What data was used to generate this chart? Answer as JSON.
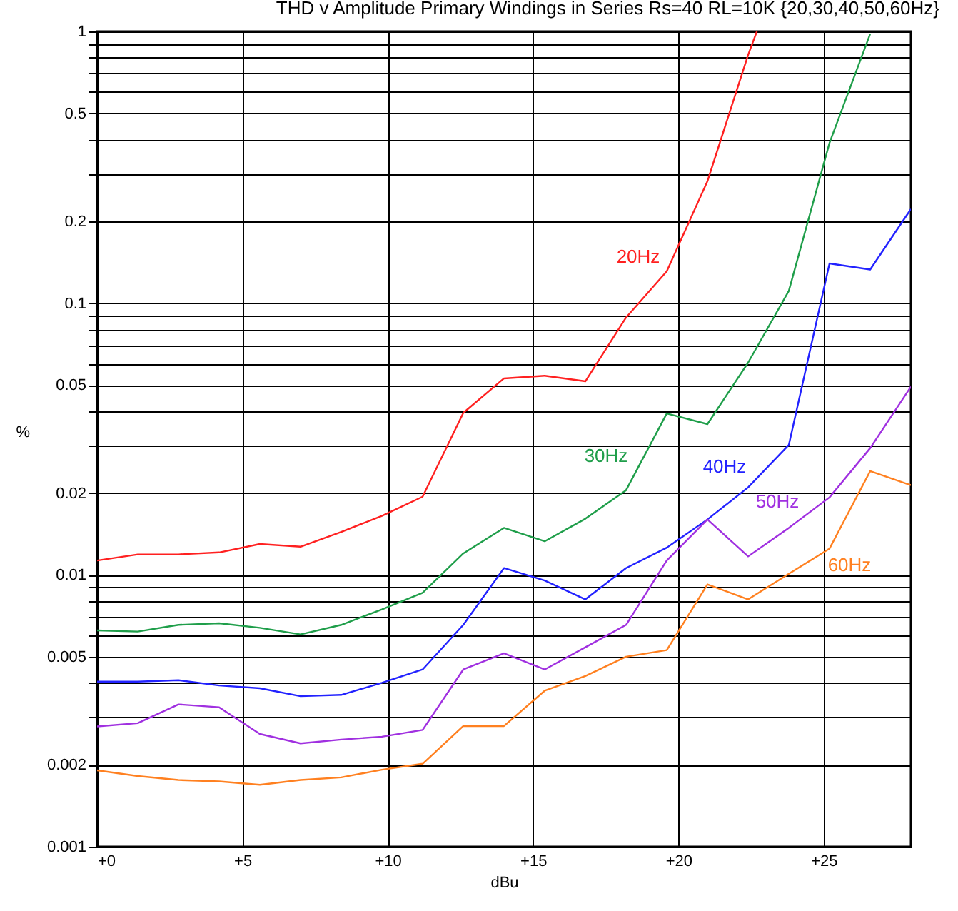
{
  "chart_data": {
    "type": "line",
    "title": "THD v Amplitude  Primary Windings in Series  Rs=40  RL=10K {20,30,40,50,60Hz}",
    "xlabel": "dBu",
    "ylabel": "%",
    "log": "y",
    "grid": true,
    "legend": false,
    "marker": "none",
    "line_style": "solid",
    "xlim": [
      0,
      28
    ],
    "ylim": [
      0.001,
      1
    ],
    "xticks": [
      {
        "value": 0,
        "label": "+0"
      },
      {
        "value": 5,
        "label": "+5"
      },
      {
        "value": 10,
        "label": "+10"
      },
      {
        "value": 15,
        "label": "+15"
      },
      {
        "value": 20,
        "label": "+20"
      },
      {
        "value": 25,
        "label": "+25"
      }
    ],
    "yticks": [
      0.001,
      {
        "value": 0.002,
        "label": "0.002"
      },
      {
        "value": 0.003,
        "label": null
      },
      {
        "value": 0.004,
        "label": null
      },
      0.005,
      {
        "value": 0.006,
        "label": null
      },
      {
        "value": 0.007,
        "label": null
      },
      {
        "value": 0.008,
        "label": null
      },
      {
        "value": 0.009,
        "label": null
      },
      0.01,
      0.02,
      {
        "value": 0.03,
        "label": null
      },
      {
        "value": 0.04,
        "label": null
      },
      0.05,
      {
        "value": 0.06,
        "label": null
      },
      {
        "value": 0.07,
        "label": null
      },
      {
        "value": 0.08,
        "label": null
      },
      {
        "value": 0.09,
        "label": null
      },
      0.1,
      0.2,
      {
        "value": 0.3,
        "label": null
      },
      {
        "value": 0.4,
        "label": null
      },
      0.5,
      {
        "value": 0.6,
        "label": null
      },
      {
        "value": 0.7,
        "label": null
      },
      {
        "value": 0.8,
        "label": null
      },
      {
        "value": 0.9,
        "label": null
      },
      1
    ],
    "series": [
      {
        "name": "20Hz",
        "color": "#ff2020",
        "x": [
          0,
          1.4,
          2.8,
          4.2,
          5.6,
          7,
          8.4,
          9.8,
          11.2,
          12.6,
          14,
          15.4,
          16.8,
          18.2,
          19.6,
          21,
          22.4,
          22.7
        ],
        "values": [
          0.0113,
          0.0119,
          0.0119,
          0.0121,
          0.013,
          0.0127,
          0.0144,
          0.0165,
          0.0194,
          0.0395,
          0.0529,
          0.0541,
          0.0516,
          0.0886,
          0.131,
          0.281,
          0.82,
          1
        ]
      },
      {
        "name": "30Hz",
        "color": "#1f9e4a",
        "x": [
          0,
          1.4,
          2.8,
          4.2,
          5.6,
          7,
          8.4,
          9.8,
          11.2,
          12.6,
          14,
          15.4,
          16.8,
          18.2,
          19.6,
          21,
          22.4,
          23.8,
          25.2,
          26.6
        ],
        "values": [
          0.00625,
          0.00619,
          0.00655,
          0.00664,
          0.00639,
          0.00604,
          0.00655,
          0.00747,
          0.0086,
          0.012,
          0.0149,
          0.0133,
          0.0161,
          0.0205,
          0.0393,
          0.0359,
          0.0605,
          0.111,
          0.389,
          0.98
        ]
      },
      {
        "name": "40Hz",
        "color": "#2222ff",
        "x": [
          0,
          1.4,
          2.8,
          4.2,
          5.6,
          7,
          8.4,
          9.8,
          11.2,
          12.6,
          14,
          15.4,
          16.8,
          18.2,
          19.6,
          21,
          22.4,
          23.8,
          25.2,
          26.6,
          28
        ],
        "values": [
          0.00405,
          0.00405,
          0.0041,
          0.00392,
          0.00383,
          0.00358,
          0.00362,
          0.00401,
          0.00449,
          0.00655,
          0.0106,
          0.00954,
          0.00813,
          0.0106,
          0.0126,
          0.016,
          0.021,
          0.0301,
          0.14,
          0.133,
          0.222
        ]
      },
      {
        "name": "50Hz",
        "color": "#a030e0",
        "x": [
          0,
          1.4,
          2.8,
          4.2,
          5.6,
          7,
          8.4,
          9.8,
          11.2,
          12.6,
          14,
          15.4,
          16.8,
          18.2,
          19.6,
          21,
          22.4,
          23.8,
          25.2,
          26.6,
          28
        ],
        "values": [
          0.00277,
          0.00285,
          0.00334,
          0.00326,
          0.0026,
          0.0024,
          0.00248,
          0.00254,
          0.00269,
          0.00449,
          0.00515,
          0.00449,
          0.00542,
          0.00655,
          0.0113,
          0.016,
          0.0117,
          0.0149,
          0.0193,
          0.0293,
          0.0493
        ]
      },
      {
        "name": "60Hz",
        "color": "#ff8020",
        "x": [
          0,
          1.4,
          2.8,
          4.2,
          5.6,
          7,
          8.4,
          9.8,
          11.2,
          12.6,
          14,
          15.4,
          16.8,
          18.2,
          19.6,
          21,
          22.4,
          23.8,
          25.2,
          26.6,
          28
        ],
        "values": [
          0.00191,
          0.00182,
          0.00176,
          0.00174,
          0.00169,
          0.00176,
          0.0018,
          0.00192,
          0.00202,
          0.00278,
          0.00278,
          0.00375,
          0.00425,
          0.005,
          0.00529,
          0.00923,
          0.00813,
          0.0101,
          0.0125,
          0.0241,
          0.0214
        ]
      }
    ]
  }
}
